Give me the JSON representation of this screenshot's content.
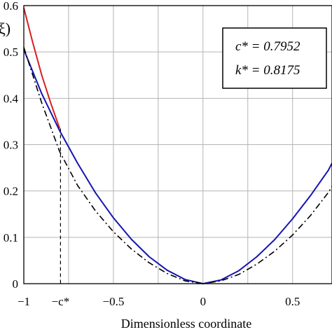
{
  "chart_data": {
    "type": "line",
    "title": "",
    "xlabel": "Dimensionless coordinate",
    "ylabel_fragment": "ξ)",
    "xlim": [
      -1,
      0.72
    ],
    "ylim": [
      0,
      0.6
    ],
    "grid": true,
    "x_ticks": [
      {
        "value": -1,
        "label": "−1"
      },
      {
        "value": -0.7952,
        "label": "−c*"
      },
      {
        "value": -0.5,
        "label": "−0.5"
      },
      {
        "value": 0,
        "label": "0"
      },
      {
        "value": 0.5,
        "label": "0.5"
      }
    ],
    "y_ticks": [
      {
        "value": 0,
        "label": "0"
      },
      {
        "value": 0.1,
        "label": "0.1"
      },
      {
        "value": 0.2,
        "label": "0.2"
      },
      {
        "value": 0.3,
        "label": "0.3"
      },
      {
        "value": 0.4,
        "label": "0.4"
      },
      {
        "value": 0.5,
        "label": "0.5"
      },
      {
        "value": 0.6,
        "label": "0.6"
      }
    ],
    "series": [
      {
        "style": "solid",
        "color": "#d62020",
        "x": [
          -1,
          -0.95,
          -0.9,
          -0.85,
          -0.8
        ],
        "y": [
          0.595,
          0.52,
          0.45,
          0.39,
          0.335
        ]
      },
      {
        "style": "solid",
        "color": "#1515b0",
        "x": [
          -1,
          -0.9,
          -0.8,
          -0.7,
          -0.6,
          -0.5,
          -0.4,
          -0.3,
          -0.2,
          -0.1,
          0,
          0.1,
          0.2,
          0.3,
          0.4,
          0.5,
          0.6,
          0.7,
          0.72
        ],
        "y": [
          0.505,
          0.41,
          0.33,
          0.26,
          0.196,
          0.142,
          0.096,
          0.058,
          0.029,
          0.009,
          0,
          0.008,
          0.028,
          0.058,
          0.095,
          0.14,
          0.19,
          0.245,
          0.26
        ]
      },
      {
        "style": "dashdot",
        "color": "#000000",
        "x": [
          -1,
          -0.9,
          -0.8,
          -0.7,
          -0.6,
          -0.5,
          -0.4,
          -0.3,
          -0.2,
          -0.1,
          0,
          0.1,
          0.2,
          0.3,
          0.4,
          0.5,
          0.6,
          0.7,
          0.72
        ],
        "y": [
          0.51,
          0.39,
          0.285,
          0.212,
          0.157,
          0.112,
          0.075,
          0.045,
          0.022,
          0.006,
          0,
          0.006,
          0.02,
          0.042,
          0.07,
          0.105,
          0.147,
          0.197,
          0.21
        ]
      }
    ],
    "guide_line": {
      "x": -0.7952,
      "y_top": 0.335,
      "style": "dashed"
    },
    "annotation": {
      "line1": "c* = 0.7952",
      "line2": "k* = 0.8175"
    }
  }
}
